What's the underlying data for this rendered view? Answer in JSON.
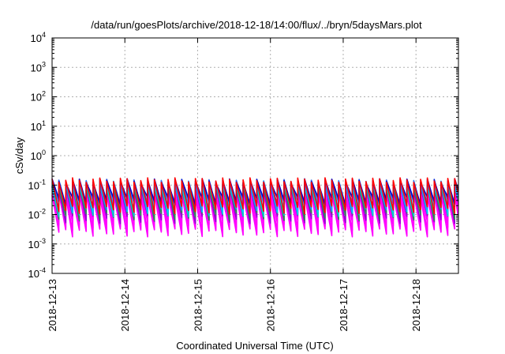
{
  "chart_data": {
    "type": "line",
    "title": "/data/run/goesPlots/archive/2018-12-18/14:00/flux/../bryn/5daysMars.plot",
    "xlabel": "Coordinated Universal Time (UTC)",
    "ylabel": "cSv/day",
    "yscale": "log",
    "ylim": [
      0.0001,
      10000
    ],
    "xlim": [
      "2018-12-13T00:00",
      "2018-12-18T14:00"
    ],
    "x_ticks": [
      "2018-12-13",
      "2018-12-14",
      "2018-12-15",
      "2018-12-16",
      "2018-12-17",
      "2018-12-18"
    ],
    "y_ticks": [
      {
        "value": 0.0001,
        "base": "10",
        "exp": "-4"
      },
      {
        "value": 0.001,
        "base": "10",
        "exp": "-3"
      },
      {
        "value": 0.01,
        "base": "10",
        "exp": "-2"
      },
      {
        "value": 0.1,
        "base": "10",
        "exp": "-1"
      },
      {
        "value": 1,
        "base": "10",
        "exp": "0"
      },
      {
        "value": 10,
        "base": "10",
        "exp": "1"
      },
      {
        "value": 100,
        "base": "10",
        "exp": "2"
      },
      {
        "value": 1000,
        "base": "10",
        "exp": "3"
      },
      {
        "value": 10000,
        "base": "10",
        "exp": "4"
      }
    ],
    "grid": true,
    "legend": "none",
    "sawtooth_period_hours": 2.25,
    "series": [
      {
        "color": "#ff00ff",
        "peak": 0.045,
        "trough": 0.0025
      },
      {
        "color": "#ff00ff",
        "peak": 0.06,
        "trough": 0.0035
      },
      {
        "color": "#ff00ff",
        "peak": 0.075,
        "trough": 0.005
      },
      {
        "color": "#9400d3",
        "peak": 0.085,
        "trough": 0.007
      },
      {
        "color": "#2e8b57",
        "peak": 0.095,
        "trough": 0.009
      },
      {
        "color": "#00ced1",
        "peak": 0.105,
        "trough": 0.012
      },
      {
        "color": "#00bfff",
        "peak": 0.115,
        "trough": 0.016
      },
      {
        "color": "#1e90ff",
        "peak": 0.125,
        "trough": 0.02
      },
      {
        "color": "#4169e1",
        "peak": 0.135,
        "trough": 0.025
      },
      {
        "color": "#0000cd",
        "peak": 0.14,
        "trough": 0.03
      },
      {
        "color": "#ff0000",
        "peak": 0.15,
        "trough": 0.015
      }
    ]
  }
}
